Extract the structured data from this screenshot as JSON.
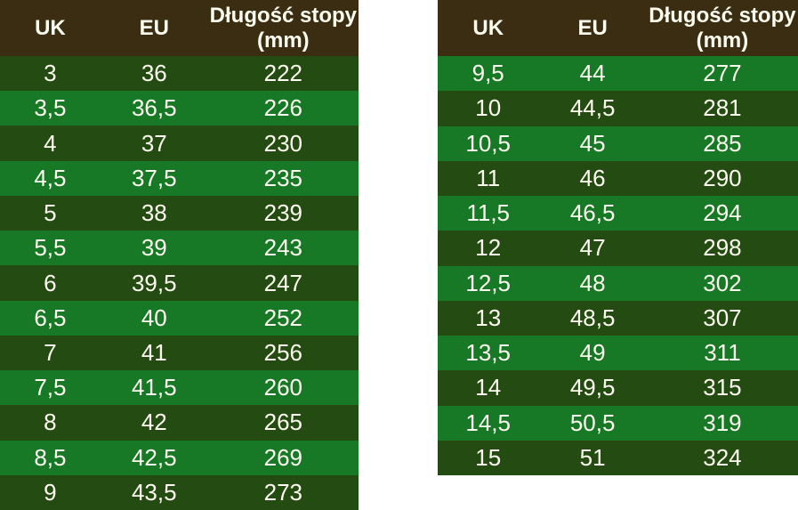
{
  "colors": {
    "page_bg": "#ffffff",
    "header_bg": "#3a2d12",
    "row_dark": "#244b12",
    "row_light": "#177825",
    "text": "#fdfcf0"
  },
  "tables": [
    {
      "name": "left",
      "first_row_shade": "dark",
      "headers": {
        "uk": "UK",
        "eu": "EU",
        "foot_length": "Długość stopy (mm)"
      },
      "rows": [
        {
          "uk": "3",
          "eu": "36",
          "mm": "222"
        },
        {
          "uk": "3,5",
          "eu": "36,5",
          "mm": "226"
        },
        {
          "uk": "4",
          "eu": "37",
          "mm": "230"
        },
        {
          "uk": "4,5",
          "eu": "37,5",
          "mm": "235"
        },
        {
          "uk": "5",
          "eu": "38",
          "mm": "239"
        },
        {
          "uk": "5,5",
          "eu": "39",
          "mm": "243"
        },
        {
          "uk": "6",
          "eu": "39,5",
          "mm": "247"
        },
        {
          "uk": "6,5",
          "eu": "40",
          "mm": "252"
        },
        {
          "uk": "7",
          "eu": "41",
          "mm": "256"
        },
        {
          "uk": "7,5",
          "eu": "41,5",
          "mm": "260"
        },
        {
          "uk": "8",
          "eu": "42",
          "mm": "265"
        },
        {
          "uk": "8,5",
          "eu": "42,5",
          "mm": "269"
        },
        {
          "uk": "9",
          "eu": "43,5",
          "mm": "273"
        }
      ]
    },
    {
      "name": "right",
      "first_row_shade": "light",
      "headers": {
        "uk": "UK",
        "eu": "EU",
        "foot_length": "Długość stopy (mm)"
      },
      "rows": [
        {
          "uk": "9,5",
          "eu": "44",
          "mm": "277"
        },
        {
          "uk": "10",
          "eu": "44,5",
          "mm": "281"
        },
        {
          "uk": "10,5",
          "eu": "45",
          "mm": "285"
        },
        {
          "uk": "11",
          "eu": "46",
          "mm": "290"
        },
        {
          "uk": "11,5",
          "eu": "46,5",
          "mm": "294"
        },
        {
          "uk": "12",
          "eu": "47",
          "mm": "298"
        },
        {
          "uk": "12,5",
          "eu": "48",
          "mm": "302"
        },
        {
          "uk": "13",
          "eu": "48,5",
          "mm": "307"
        },
        {
          "uk": "13,5",
          "eu": "49",
          "mm": "311"
        },
        {
          "uk": "14",
          "eu": "49,5",
          "mm": "315"
        },
        {
          "uk": "14,5",
          "eu": "50,5",
          "mm": "319"
        },
        {
          "uk": "15",
          "eu": "51",
          "mm": "324"
        }
      ]
    }
  ]
}
